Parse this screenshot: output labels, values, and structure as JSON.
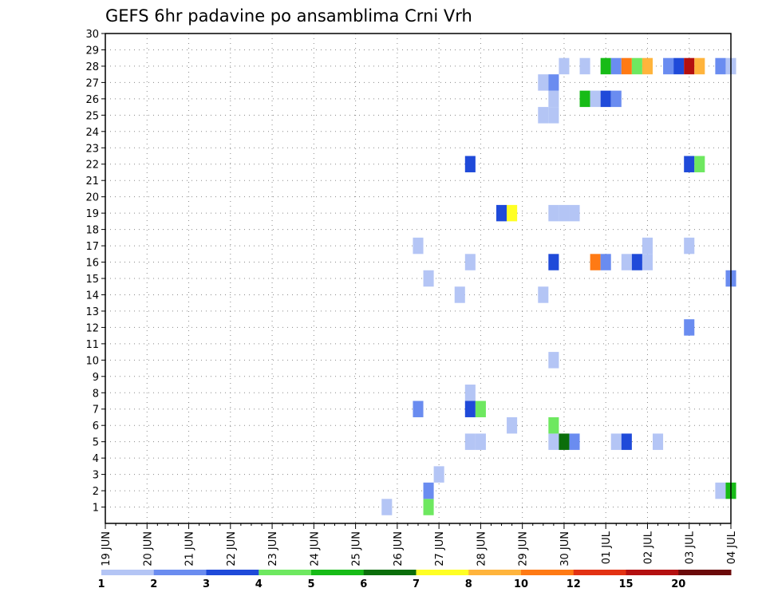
{
  "chart_data": {
    "type": "heatmap",
    "title": "GEFS 6hr padavine po ansamblima Crni Vrh",
    "xlabel": "",
    "ylabel": "",
    "x_ticks": [
      "19 JUN",
      "20 JUN",
      "21 JUN",
      "22 JUN",
      "23 JUN",
      "24 JUN",
      "25 JUN",
      "26 JUN",
      "27 JUN",
      "28 JUN",
      "29 JUN",
      "30 JUN",
      "01 JUL",
      "02 JUL",
      "03 JUL",
      "04 JUL"
    ],
    "y_ticks": [
      "1",
      "2",
      "3",
      "4",
      "5",
      "6",
      "7",
      "8",
      "9",
      "10",
      "11",
      "12",
      "13",
      "14",
      "15",
      "16",
      "17",
      "18",
      "19",
      "20",
      "21",
      "22",
      "23",
      "24",
      "25",
      "26",
      "27",
      "28",
      "29",
      "30"
    ],
    "xlim": [
      0,
      60
    ],
    "ylim": [
      0,
      30
    ],
    "x_step_unit": "6h steps since 19 JUN 00Z",
    "legend": {
      "labels": [
        "1",
        "2",
        "3",
        "4",
        "5",
        "6",
        "7",
        "8",
        "10",
        "12",
        "15",
        "20"
      ],
      "colors": [
        "#b4c5f5",
        "#6a8cf0",
        "#1f4ad9",
        "#6ee860",
        "#17bb17",
        "#0b6e0b",
        "#ffff24",
        "#ffb43c",
        "#ff7a14",
        "#e33213",
        "#b41010",
        "#6b0a0a"
      ]
    },
    "cells": [
      {
        "x": 27,
        "y": 1,
        "c": 0
      },
      {
        "x": 31,
        "y": 1,
        "c": 3
      },
      {
        "x": 31,
        "y": 2,
        "c": 1
      },
      {
        "x": 59,
        "y": 2,
        "c": 0
      },
      {
        "x": 60,
        "y": 2,
        "c": 4
      },
      {
        "x": 32,
        "y": 3,
        "c": 0
      },
      {
        "x": 35,
        "y": 5,
        "c": 0
      },
      {
        "x": 36,
        "y": 5,
        "c": 0
      },
      {
        "x": 43,
        "y": 5,
        "c": 0
      },
      {
        "x": 44,
        "y": 5,
        "c": 5
      },
      {
        "x": 45,
        "y": 5,
        "c": 1
      },
      {
        "x": 49,
        "y": 5,
        "c": 0
      },
      {
        "x": 50,
        "y": 5,
        "c": 2
      },
      {
        "x": 53,
        "y": 5,
        "c": 0
      },
      {
        "x": 39,
        "y": 6,
        "c": 0
      },
      {
        "x": 43,
        "y": 6,
        "c": 3
      },
      {
        "x": 30,
        "y": 7,
        "c": 1
      },
      {
        "x": 35,
        "y": 7,
        "c": 2
      },
      {
        "x": 36,
        "y": 7,
        "c": 3
      },
      {
        "x": 35,
        "y": 8,
        "c": 0
      },
      {
        "x": 43,
        "y": 10,
        "c": 0
      },
      {
        "x": 56,
        "y": 12,
        "c": 1
      },
      {
        "x": 34,
        "y": 14,
        "c": 0
      },
      {
        "x": 42,
        "y": 14,
        "c": 0
      },
      {
        "x": 31,
        "y": 15,
        "c": 0
      },
      {
        "x": 60,
        "y": 15,
        "c": 1
      },
      {
        "x": 35,
        "y": 16,
        "c": 0
      },
      {
        "x": 43,
        "y": 16,
        "c": 2
      },
      {
        "x": 47,
        "y": 16,
        "c": 8
      },
      {
        "x": 48,
        "y": 16,
        "c": 1
      },
      {
        "x": 50,
        "y": 16,
        "c": 0
      },
      {
        "x": 51,
        "y": 16,
        "c": 2
      },
      {
        "x": 52,
        "y": 16,
        "c": 0
      },
      {
        "x": 30,
        "y": 17,
        "c": 0
      },
      {
        "x": 52,
        "y": 17,
        "c": 0
      },
      {
        "x": 56,
        "y": 17,
        "c": 0
      },
      {
        "x": 38,
        "y": 19,
        "c": 2
      },
      {
        "x": 39,
        "y": 19,
        "c": 6
      },
      {
        "x": 43,
        "y": 19,
        "c": 0
      },
      {
        "x": 44,
        "y": 19,
        "c": 0
      },
      {
        "x": 45,
        "y": 19,
        "c": 0
      },
      {
        "x": 35,
        "y": 22,
        "c": 2
      },
      {
        "x": 56,
        "y": 22,
        "c": 2
      },
      {
        "x": 57,
        "y": 22,
        "c": 3
      },
      {
        "x": 42,
        "y": 25,
        "c": 0
      },
      {
        "x": 43,
        "y": 25,
        "c": 0
      },
      {
        "x": 43,
        "y": 26,
        "c": 0
      },
      {
        "x": 46,
        "y": 26,
        "c": 4
      },
      {
        "x": 47,
        "y": 26,
        "c": 0
      },
      {
        "x": 48,
        "y": 26,
        "c": 2
      },
      {
        "x": 49,
        "y": 26,
        "c": 1
      },
      {
        "x": 42,
        "y": 27,
        "c": 0
      },
      {
        "x": 43,
        "y": 27,
        "c": 1
      },
      {
        "x": 44,
        "y": 28,
        "c": 0
      },
      {
        "x": 46,
        "y": 28,
        "c": 0
      },
      {
        "x": 48,
        "y": 28,
        "c": 4
      },
      {
        "x": 49,
        "y": 28,
        "c": 1
      },
      {
        "x": 50,
        "y": 28,
        "c": 8
      },
      {
        "x": 51,
        "y": 28,
        "c": 3
      },
      {
        "x": 52,
        "y": 28,
        "c": 7
      },
      {
        "x": 54,
        "y": 28,
        "c": 1
      },
      {
        "x": 55,
        "y": 28,
        "c": 2
      },
      {
        "x": 56,
        "y": 28,
        "c": 10
      },
      {
        "x": 57,
        "y": 28,
        "c": 7
      },
      {
        "x": 59,
        "y": 28,
        "c": 1
      },
      {
        "x": 60,
        "y": 28,
        "c": 0
      }
    ]
  }
}
